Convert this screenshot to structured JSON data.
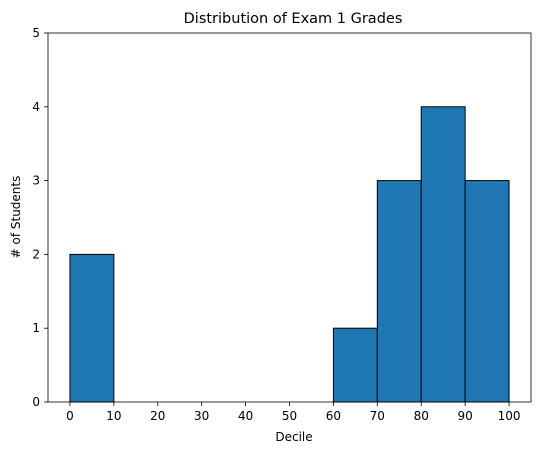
{
  "chart_data": {
    "type": "bar",
    "title": "Distribution of Exam 1 Grades",
    "xlabel": "Decile",
    "ylabel": "# of Students",
    "bins": [
      {
        "start": 0,
        "end": 10,
        "value": 2
      },
      {
        "start": 10,
        "end": 20,
        "value": 0
      },
      {
        "start": 20,
        "end": 30,
        "value": 0
      },
      {
        "start": 30,
        "end": 40,
        "value": 0
      },
      {
        "start": 40,
        "end": 50,
        "value": 0
      },
      {
        "start": 50,
        "end": 60,
        "value": 0
      },
      {
        "start": 60,
        "end": 70,
        "value": 1
      },
      {
        "start": 70,
        "end": 80,
        "value": 3
      },
      {
        "start": 80,
        "end": 90,
        "value": 4
      },
      {
        "start": 90,
        "end": 100,
        "value": 3
      }
    ],
    "xticks": [
      "0",
      "10",
      "20",
      "30",
      "40",
      "50",
      "60",
      "70",
      "80",
      "90",
      "100"
    ],
    "yticks": [
      "0",
      "1",
      "2",
      "3",
      "4",
      "5"
    ],
    "xlim": [
      -5,
      105
    ],
    "ylim": [
      0,
      5
    ],
    "grid": false,
    "bar_color": "#1f77b4",
    "edge_color": "#000000"
  }
}
